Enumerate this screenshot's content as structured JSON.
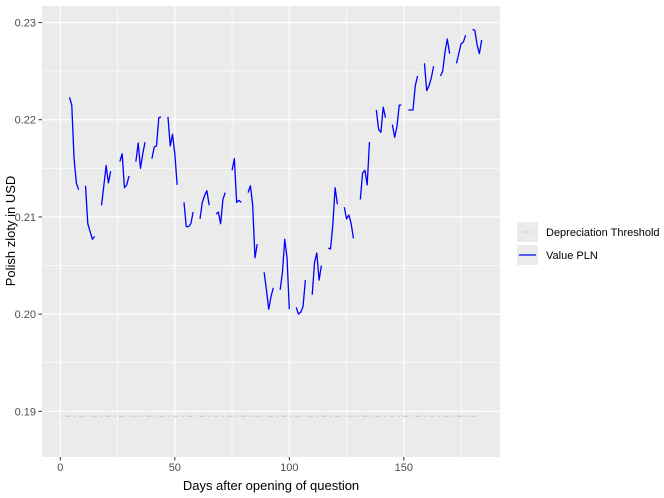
{
  "chart_data": {
    "type": "line",
    "xlabel": "Days after opening of question",
    "ylabel": "Polish zloty in USD",
    "xlim": [
      -8,
      192
    ],
    "ylim": [
      0.1853,
      0.2317
    ],
    "x_ticks": [
      0,
      50,
      100,
      150
    ],
    "y_ticks": [
      0.19,
      0.2,
      0.21,
      0.22,
      0.23
    ],
    "y_tick_labels": [
      "0.19",
      "0.20",
      "0.21",
      "0.22",
      "0.23"
    ],
    "grid": true,
    "legend_position": "right",
    "series": [
      {
        "name": "Depreciation Threshold",
        "color": "#c8c8c8",
        "dash": "dotdash",
        "segments": [
          [
            [
              0,
              0.1895
            ],
            [
              183,
              0.1895
            ]
          ]
        ]
      },
      {
        "name": "Value PLN",
        "color": "#0000ff",
        "dash": "solid",
        "segments": [
          [
            [
              4,
              0.2223
            ],
            [
              5,
              0.2215
            ],
            [
              6,
              0.216
            ],
            [
              7,
              0.2135
            ],
            [
              8,
              0.2128
            ]
          ],
          [
            [
              11,
              0.2132
            ],
            [
              12,
              0.2093
            ],
            [
              13,
              0.2085
            ],
            [
              14,
              0.2077
            ],
            [
              15,
              0.208
            ]
          ],
          [
            [
              18,
              0.2112
            ],
            [
              19,
              0.2132
            ],
            [
              20,
              0.2153
            ],
            [
              21,
              0.2135
            ],
            [
              22,
              0.2147
            ]
          ],
          [
            [
              26,
              0.2157
            ],
            [
              27,
              0.2165
            ],
            [
              28,
              0.213
            ],
            [
              29,
              0.2133
            ],
            [
              30,
              0.2142
            ]
          ],
          [
            [
              33,
              0.2157
            ],
            [
              34,
              0.2176
            ],
            [
              35,
              0.215
            ],
            [
              36,
              0.2165
            ],
            [
              37,
              0.2177
            ]
          ],
          [
            [
              40,
              0.216
            ],
            [
              41,
              0.2172
            ],
            [
              42,
              0.2173
            ],
            [
              43,
              0.2202
            ],
            [
              44,
              0.2203
            ]
          ],
          [
            [
              47,
              0.2203
            ],
            [
              48,
              0.2173
            ],
            [
              49,
              0.2185
            ],
            [
              50,
              0.2165
            ],
            [
              51,
              0.2133
            ]
          ],
          [
            [
              54,
              0.2115
            ],
            [
              55,
              0.209
            ],
            [
              56,
              0.209
            ],
            [
              57,
              0.2093
            ],
            [
              58,
              0.2105
            ]
          ],
          [
            [
              61,
              0.2098
            ],
            [
              62,
              0.2115
            ],
            [
              63,
              0.2122
            ],
            [
              64,
              0.2127
            ],
            [
              65,
              0.2112
            ]
          ],
          [
            [
              68,
              0.2103
            ],
            [
              69,
              0.2105
            ],
            [
              70,
              0.2093
            ],
            [
              71,
              0.2118
            ],
            [
              72,
              0.2125
            ]
          ],
          [
            [
              75,
              0.2148
            ],
            [
              76,
              0.216
            ],
            [
              77,
              0.2115
            ],
            [
              78,
              0.2117
            ],
            [
              79,
              0.2115
            ]
          ],
          [
            [
              82,
              0.2125
            ],
            [
              83,
              0.2132
            ],
            [
              84,
              0.2112
            ],
            [
              85,
              0.2058
            ],
            [
              86,
              0.2072
            ]
          ],
          [
            [
              89,
              0.2043
            ],
            [
              90,
              0.2025
            ],
            [
              91,
              0.2005
            ],
            [
              92,
              0.2018
            ],
            [
              93,
              0.2027
            ]
          ],
          [
            [
              96,
              0.2025
            ],
            [
              97,
              0.2043
            ],
            [
              98,
              0.2077
            ],
            [
              99,
              0.2058
            ],
            [
              100,
              0.2005
            ]
          ],
          [
            [
              103,
              0.2007
            ],
            [
              104,
              0.2
            ],
            [
              105,
              0.2002
            ],
            [
              106,
              0.2008
            ],
            [
              107,
              0.2035
            ]
          ],
          [
            [
              110,
              0.202
            ],
            [
              111,
              0.2053
            ],
            [
              112,
              0.2063
            ],
            [
              113,
              0.2035
            ],
            [
              114,
              0.205
            ]
          ],
          [
            [
              117,
              0.2068
            ],
            [
              118,
              0.2067
            ],
            [
              119,
              0.2092
            ],
            [
              120,
              0.213
            ],
            [
              121,
              0.2113
            ]
          ],
          [
            [
              124,
              0.211
            ],
            [
              125,
              0.2098
            ],
            [
              126,
              0.2102
            ],
            [
              127,
              0.2093
            ],
            [
              128,
              0.2078
            ]
          ],
          [
            [
              131,
              0.2118
            ],
            [
              132,
              0.2145
            ],
            [
              133,
              0.2148
            ],
            [
              134,
              0.2133
            ],
            [
              135,
              0.2177
            ]
          ],
          [
            [
              138,
              0.221
            ],
            [
              139,
              0.219
            ],
            [
              140,
              0.2187
            ],
            [
              141,
              0.2213
            ],
            [
              142,
              0.2202
            ]
          ],
          [
            [
              145,
              0.2195
            ],
            [
              146,
              0.2182
            ],
            [
              147,
              0.2193
            ],
            [
              148,
              0.2215
            ],
            [
              149,
              0.2215
            ]
          ],
          [
            [
              152,
              0.221
            ],
            [
              153,
              0.221
            ],
            [
              154,
              0.221
            ],
            [
              155,
              0.2235
            ],
            [
              156,
              0.2245
            ]
          ],
          [
            [
              159,
              0.2258
            ],
            [
              160,
              0.223
            ],
            [
              161,
              0.2235
            ],
            [
              162,
              0.2243
            ],
            [
              163,
              0.2255
            ]
          ],
          [
            [
              166,
              0.2245
            ],
            [
              167,
              0.225
            ],
            [
              168,
              0.227
            ],
            [
              169,
              0.2283
            ],
            [
              170,
              0.2268
            ]
          ],
          [
            [
              173,
              0.2258
            ],
            [
              174,
              0.2268
            ],
            [
              175,
              0.2278
            ],
            [
              176,
              0.228
            ],
            [
              177,
              0.2287
            ]
          ],
          [
            [
              180,
              0.2293
            ],
            [
              181,
              0.2292
            ],
            [
              182,
              0.2277
            ],
            [
              183,
              0.2268
            ],
            [
              184,
              0.2282
            ]
          ]
        ]
      }
    ]
  }
}
